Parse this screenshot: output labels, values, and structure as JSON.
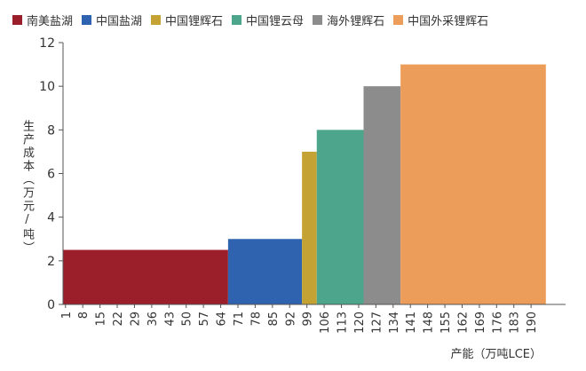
{
  "chart_data": {
    "type": "bar",
    "ylabel": "生产成本（万元/吨）",
    "xlabel": "产能（万吨LCE）",
    "ylim": [
      0,
      12
    ],
    "yticks": [
      0,
      2,
      4,
      6,
      8,
      10,
      12
    ],
    "xlim": [
      0,
      204
    ],
    "xticks": [
      1,
      8,
      15,
      22,
      29,
      36,
      43,
      50,
      57,
      64,
      71,
      78,
      85,
      92,
      99,
      106,
      113,
      120,
      127,
      134,
      141,
      148,
      155,
      162,
      169,
      176,
      183,
      190
    ],
    "grid": false,
    "legend_position": "top",
    "series": [
      {
        "name": "南美盐湖",
        "color": "#9b1f2a",
        "x_start": 0,
        "x_end": 67,
        "value": 2.5
      },
      {
        "name": "中国盐湖",
        "color": "#2f63b0",
        "x_start": 67,
        "x_end": 97,
        "value": 3
      },
      {
        "name": "中国锂辉石",
        "color": "#c4a233",
        "x_start": 97,
        "x_end": 103,
        "value": 7
      },
      {
        "name": "中国锂云母",
        "color": "#4da58c",
        "x_start": 103,
        "x_end": 122,
        "value": 8
      },
      {
        "name": "海外锂辉石",
        "color": "#8c8c8c",
        "x_start": 122,
        "x_end": 137,
        "value": 10
      },
      {
        "name": "中国外采锂辉石",
        "color": "#ec9d5a",
        "x_start": 137,
        "x_end": 196,
        "value": 11
      }
    ]
  }
}
